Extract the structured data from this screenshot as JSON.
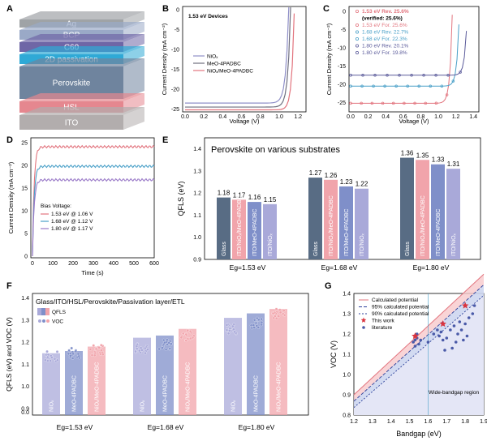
{
  "panels": {
    "A": {
      "label": "A",
      "layers": [
        {
          "name": "Ag",
          "color": "#9fa3a6"
        },
        {
          "name": "BCP",
          "color": "#9aa9c7"
        },
        {
          "name": "C60",
          "color": "#6f66a6"
        },
        {
          "name": "2D passivation",
          "color": "#2fa9d6"
        },
        {
          "name": "Perovskite",
          "color": "#6f849e"
        },
        {
          "name": "HSL",
          "color": "#e5878f"
        },
        {
          "name": "ITO",
          "color": "#b2adad"
        }
      ]
    },
    "B": {
      "label": "B",
      "annotation": "1.53 eV Devices",
      "xlabel": "Voltage (V)",
      "ylabel": "Current Density (mA cm⁻²)",
      "xticks": [
        "0.0",
        "0.2",
        "0.4",
        "0.6",
        "0.8",
        "1.0",
        "1.2"
      ],
      "yticks": [
        "0",
        "-5",
        "-10",
        "-15",
        "-20",
        "-25"
      ],
      "legend": [
        "NiOₓ",
        "MeO-4PADBC",
        "NiOₓ/MeO-4PADBC"
      ],
      "series_colors": [
        "#8f8fc8",
        "#6f6f7f",
        "#e2747e"
      ]
    },
    "C": {
      "label": "C",
      "xlabel": "Voltage (V)",
      "ylabel": "Current Density (mA cm⁻²)",
      "xticks": [
        "0.0",
        "0.2",
        "0.4",
        "0.6",
        "0.8",
        "1.0",
        "1.2",
        "1.4"
      ],
      "yticks": [
        "0",
        "-5",
        "-10",
        "-15",
        "-20",
        "-25"
      ],
      "legend": [
        {
          "text": "1.53 eV Rev. 25.6%",
          "color": "#e2747e",
          "bold": true
        },
        {
          "text": "(verified: 25.6%)",
          "color": "#000000",
          "bold": true
        },
        {
          "text": "1.53 eV For. 25.6%",
          "color": "#e2747e",
          "bold": false
        },
        {
          "text": "1.68 eV Rev. 22.7%",
          "color": "#4aa0c8",
          "bold": false
        },
        {
          "text": "1.68 eV For. 22.3%",
          "color": "#4aa0c8",
          "bold": false
        },
        {
          "text": "1.80 eV Rev. 20.1%",
          "color": "#5a5a9a",
          "bold": false
        },
        {
          "text": "1.80 eV For. 19.8%",
          "color": "#5a5a9a",
          "bold": false
        }
      ]
    },
    "D": {
      "label": "D",
      "xlabel": "Time (s)",
      "ylabel": "Current Density (mA cm⁻²)",
      "xticks": [
        "0",
        "100",
        "200",
        "300",
        "400",
        "500",
        "600"
      ],
      "yticks": [
        "0",
        "5",
        "10",
        "15",
        "20",
        "25"
      ],
      "legend_title": "Bias Voltage:",
      "legend": [
        {
          "text": "1.53 eV @ 1.06 V",
          "color": "#e2747e"
        },
        {
          "text": "1.68 eV @ 1.12 V",
          "color": "#4aa0c8"
        },
        {
          "text": "1.80 eV @ 1.17 V",
          "color": "#9a7ac8"
        }
      ]
    },
    "E": {
      "label": "E",
      "title": "Perovskite on various substrates",
      "ylabel": "QFLS (eV)",
      "yticks": [
        "0.9",
        "1.0",
        "1.1",
        "1.2",
        "1.3",
        "1.4"
      ],
      "group_labels": [
        "Eg=1.53 eV",
        "Eg=1.68 eV",
        "Eg=1.80 eV"
      ]
    },
    "F": {
      "label": "F",
      "title": "Glass/ITO/HSL/Perovskite/Passivation layer/ETL",
      "ylabel": "QFLS (eV) and VOC (V)",
      "yticks": [
        "0.0",
        "0.9",
        "1.0",
        "1.1",
        "1.2",
        "1.3",
        "1.4"
      ],
      "legend": [
        "QFLS",
        "VOC"
      ],
      "group_labels": [
        "Eg=1.53 eV",
        "Eg=1.68 eV",
        "Eg=1.80 eV"
      ],
      "bar_labels": [
        "NiOₓ",
        "MeO-4PADBC",
        "NiOₓ/MeO-4PADBC"
      ]
    },
    "G": {
      "label": "G",
      "xlabel": "Bandgap (eV)",
      "ylabel": "VOC (V)",
      "xticks": [
        "1.2",
        "1.3",
        "1.4",
        "1.5",
        "1.6",
        "1.7",
        "1.8",
        "1.9"
      ],
      "yticks": [
        "0.8",
        "0.9",
        "1.0",
        "1.1",
        "1.2",
        "1.3",
        "1.4"
      ],
      "legend": [
        "Calculated potential",
        "95% calculated potential",
        "90% calculated potential",
        "This work",
        "literature"
      ],
      "region_label": "Wide-bandgap region"
    }
  },
  "chart_data": [
    {
      "panel": "E",
      "type": "bar",
      "ylim": [
        0.9,
        1.45
      ],
      "groups": [
        {
          "label": "Eg=1.53 eV",
          "bars": [
            {
              "name": "Glass",
              "value": 1.18,
              "color": "#586c84"
            },
            {
              "name": "ITO/NiOₓ/MeO-4PADBC",
              "value": 1.17,
              "color": "#f1a4ab"
            },
            {
              "name": "ITO/MeO-4PADBC",
              "value": 1.16,
              "color": "#7f8fc9"
            },
            {
              "name": "ITO/NiOₓ",
              "value": 1.15,
              "color": "#a9a9d9"
            }
          ]
        },
        {
          "label": "Eg=1.68 eV",
          "bars": [
            {
              "name": "Glass",
              "value": 1.27,
              "color": "#586c84"
            },
            {
              "name": "ITO/NiOₓ/MeO-4PADBC",
              "value": 1.26,
              "color": "#f1a4ab"
            },
            {
              "name": "ITO/MeO-4PADBC",
              "value": 1.23,
              "color": "#7f8fc9"
            },
            {
              "name": "ITO/NiOₓ",
              "value": 1.22,
              "color": "#a9a9d9"
            }
          ]
        },
        {
          "label": "Eg=1.80 eV",
          "bars": [
            {
              "name": "Glass",
              "value": 1.36,
              "color": "#586c84"
            },
            {
              "name": "ITO/NiOₓ/MeO-4PADBC",
              "value": 1.35,
              "color": "#f1a4ab"
            },
            {
              "name": "ITO/MeO-4PADBC",
              "value": 1.33,
              "color": "#7f8fc9"
            },
            {
              "name": "ITO/NiOₓ",
              "value": 1.31,
              "color": "#a9a9d9"
            }
          ]
        }
      ]
    },
    {
      "panel": "F",
      "type": "bar",
      "ylim": [
        0.9,
        1.42
      ],
      "groups": [
        {
          "label": "Eg=1.53 eV",
          "qfls": [
            1.15,
            1.16,
            1.18
          ],
          "voc": [
            1.135,
            1.15,
            1.165
          ]
        },
        {
          "label": "Eg=1.68 eV",
          "qfls": [
            1.22,
            1.23,
            1.26
          ],
          "voc": [
            1.175,
            1.19,
            1.23
          ]
        },
        {
          "label": "Eg=1.80 eV",
          "qfls": [
            1.31,
            1.33,
            1.35
          ],
          "voc": [
            1.26,
            1.285,
            1.33
          ]
        }
      ],
      "colors": [
        "#a9a9d9",
        "#7f8fc9",
        "#f1a4ab"
      ]
    },
    {
      "panel": "G",
      "type": "scatter",
      "xlim": [
        1.2,
        1.9
      ],
      "ylim": [
        0.8,
        1.4
      ],
      "this_work": [
        [
          1.53,
          1.19
        ],
        [
          1.68,
          1.25
        ],
        [
          1.8,
          1.34
        ]
      ],
      "literature": [
        [
          1.52,
          1.16
        ],
        [
          1.53,
          1.17
        ],
        [
          1.54,
          1.18
        ],
        [
          1.55,
          1.15
        ],
        [
          1.56,
          1.17
        ],
        [
          1.54,
          1.2
        ],
        [
          1.53,
          1.14
        ],
        [
          1.6,
          1.16
        ],
        [
          1.63,
          1.2
        ],
        [
          1.65,
          1.22
        ],
        [
          1.66,
          1.19
        ],
        [
          1.67,
          1.21
        ],
        [
          1.68,
          1.17
        ],
        [
          1.7,
          1.18
        ],
        [
          1.72,
          1.22
        ],
        [
          1.74,
          1.24
        ],
        [
          1.76,
          1.2
        ],
        [
          1.77,
          1.26
        ],
        [
          1.78,
          1.22
        ],
        [
          1.79,
          1.17
        ],
        [
          1.8,
          1.25
        ],
        [
          1.81,
          1.19
        ],
        [
          1.82,
          1.28
        ],
        [
          1.84,
          1.3
        ],
        [
          1.85,
          1.34
        ],
        [
          1.75,
          1.16
        ],
        [
          1.73,
          1.13
        ],
        [
          1.69,
          1.12
        ]
      ]
    }
  ]
}
